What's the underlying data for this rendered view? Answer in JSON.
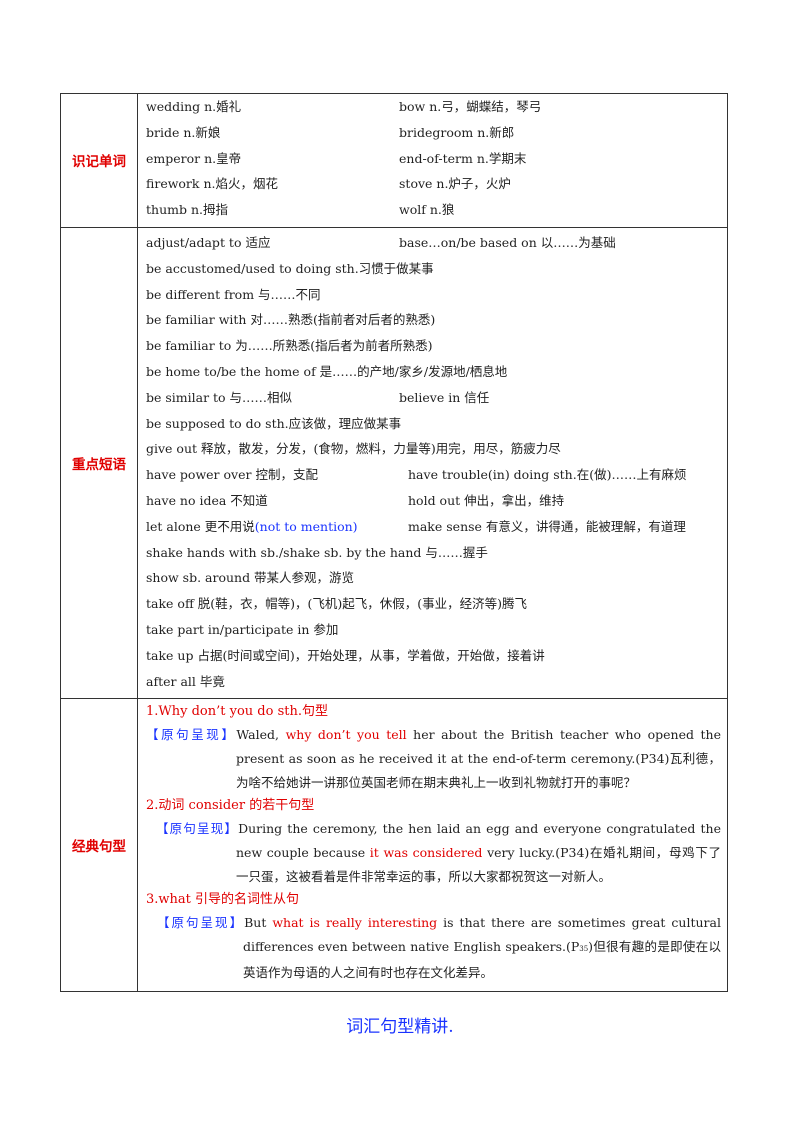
{
  "vocab": {
    "label": "识记单词",
    "rows": [
      [
        "wedding n.婚礼",
        "bow n.弓，蝴蝶结，琴弓"
      ],
      [
        "bride n.新娘",
        "bridegroom n.新郎"
      ],
      [
        "emperor n.皇帝",
        "end-of-term n.学期末"
      ],
      [
        "firework n.焰火，烟花",
        "stove n.炉子，火炉"
      ],
      [
        "thumb n.拇指",
        "wolf n.狼"
      ]
    ]
  },
  "phrases": {
    "label": "重点短语",
    "r1a": "adjust/adapt to 适应",
    "r1b": "base…on/be based on 以……为基础",
    "r2": "be accustomed/used to doing sth.习惯于做某事",
    "r3": "be different from 与……不同",
    "r4": "be familiar with 对……熟悉(指前者对后者的熟悉)",
    "r5": "be familiar to 为……所熟悉(指后者为前者所熟悉)",
    "r6": "be home to/be the home of 是……的产地/家乡/发源地/栖息地",
    "r7a": "be similar to 与……相似",
    "r7b": "believe in 信任",
    "r8": "be supposed to do sth.应该做，理应做某事",
    "r9": "give out 释放，散发，分发，(食物，燃料，力量等)用完，用尽，筋疲力尽",
    "r10a": "have power over 控制，支配",
    "r10b": "have trouble(in) doing sth.在(做)……上有麻烦",
    "r11a": "have  no  idea 不知道",
    "r11b": "hold out 伸出，拿出，维持",
    "r12a_text": "let alone 更不用说",
    "r12a_blue": "(not  to  mention)",
    "r12b": "make sense 有意义，讲得通，能被理解，有道理",
    "r13": "shake hands with sb./shake sb.  by the hand 与……握手",
    "r14": "show sb.  around 带某人参观，游览",
    "r15": "take off 脱(鞋，衣，帽等)，(飞机)起飞，休假，(事业，经济等)腾飞",
    "r16": "take part in/participate in 参加",
    "r17": "take up 占据(时间或空间)，开始处理，从事，学着做，开始做，接着讲",
    "r18": "after all 毕竟"
  },
  "sentences": {
    "label": "经典句型",
    "s1_title": "1.Why don’t you do sth.句型",
    "s1_tag": "【原句呈现】",
    "s1_a": "Waled, ",
    "s1_red": "why don’t you tell",
    "s1_b": " her about the British teacher who opened the present as soon as he received it at the end-of-term ceremony.(P34)瓦利德，为啥不给她讲一讲那位英国老师在期末典礼上一收到礼物就打开的事呢？",
    "s2_title": "2.动词 consider 的若干句型",
    "s2_tag": "【原句呈现】",
    "s2_a": "During the ceremony, the hen laid an egg and everyone congratulated the new couple because ",
    "s2_red": "it was considered",
    "s2_b": " very lucky.(P34)在婚礼期间，母鸡下了一只蛋，这被看着是件非常幸运的事，所以大家都祝贺这一对新人。",
    "s3_title": "3.what 引导的名词性从句",
    "s3_tag": "【原句呈现】",
    "s3_a": "But ",
    "s3_red": "what is really interesting",
    "s3_b": " is that there are sometimes great cultural differences even between native English speakers.(P",
    "s3_sub": "35",
    "s3_c": ")但很有趣的是即使在以英语作为母语的人之间有时也存在文化差异。"
  },
  "footer": "词汇句型精讲."
}
